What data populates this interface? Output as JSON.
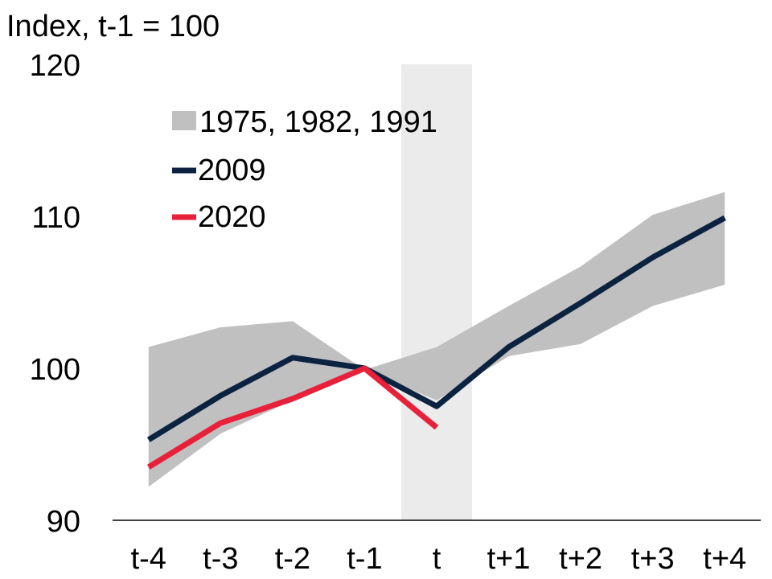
{
  "chart_data": {
    "type": "line",
    "ylabel": "Index, t-1 = 100",
    "ylim": [
      90,
      120
    ],
    "yticks": [
      90,
      100,
      110,
      120
    ],
    "categories": [
      "t-4",
      "t-3",
      "t-2",
      "t-1",
      "t",
      "t+1",
      "t+2",
      "t+3",
      "t+4"
    ],
    "highlight_category": "t",
    "range_band": {
      "name": "1975, 1982, 1991",
      "color": "#c0c0c0",
      "low": [
        92.2,
        95.7,
        97.9,
        99.9,
        97.9,
        100.8,
        101.6,
        104.1,
        105.5
      ],
      "high": [
        101.4,
        102.7,
        103.1,
        99.9,
        101.4,
        104.1,
        106.7,
        110.1,
        111.6
      ]
    },
    "series": [
      {
        "name": "2009",
        "color": "#0b2240",
        "values": [
          95.3,
          98.2,
          100.7,
          100.0,
          97.5,
          101.4,
          104.3,
          107.3,
          109.9
        ]
      },
      {
        "name": "2020",
        "color": "#e8203a",
        "values": [
          93.5,
          96.4,
          98.0,
          100.0,
          96.1,
          null,
          null,
          null,
          null
        ]
      }
    ],
    "highlight_color": "#ebebeb",
    "axis_color": "#000000"
  }
}
